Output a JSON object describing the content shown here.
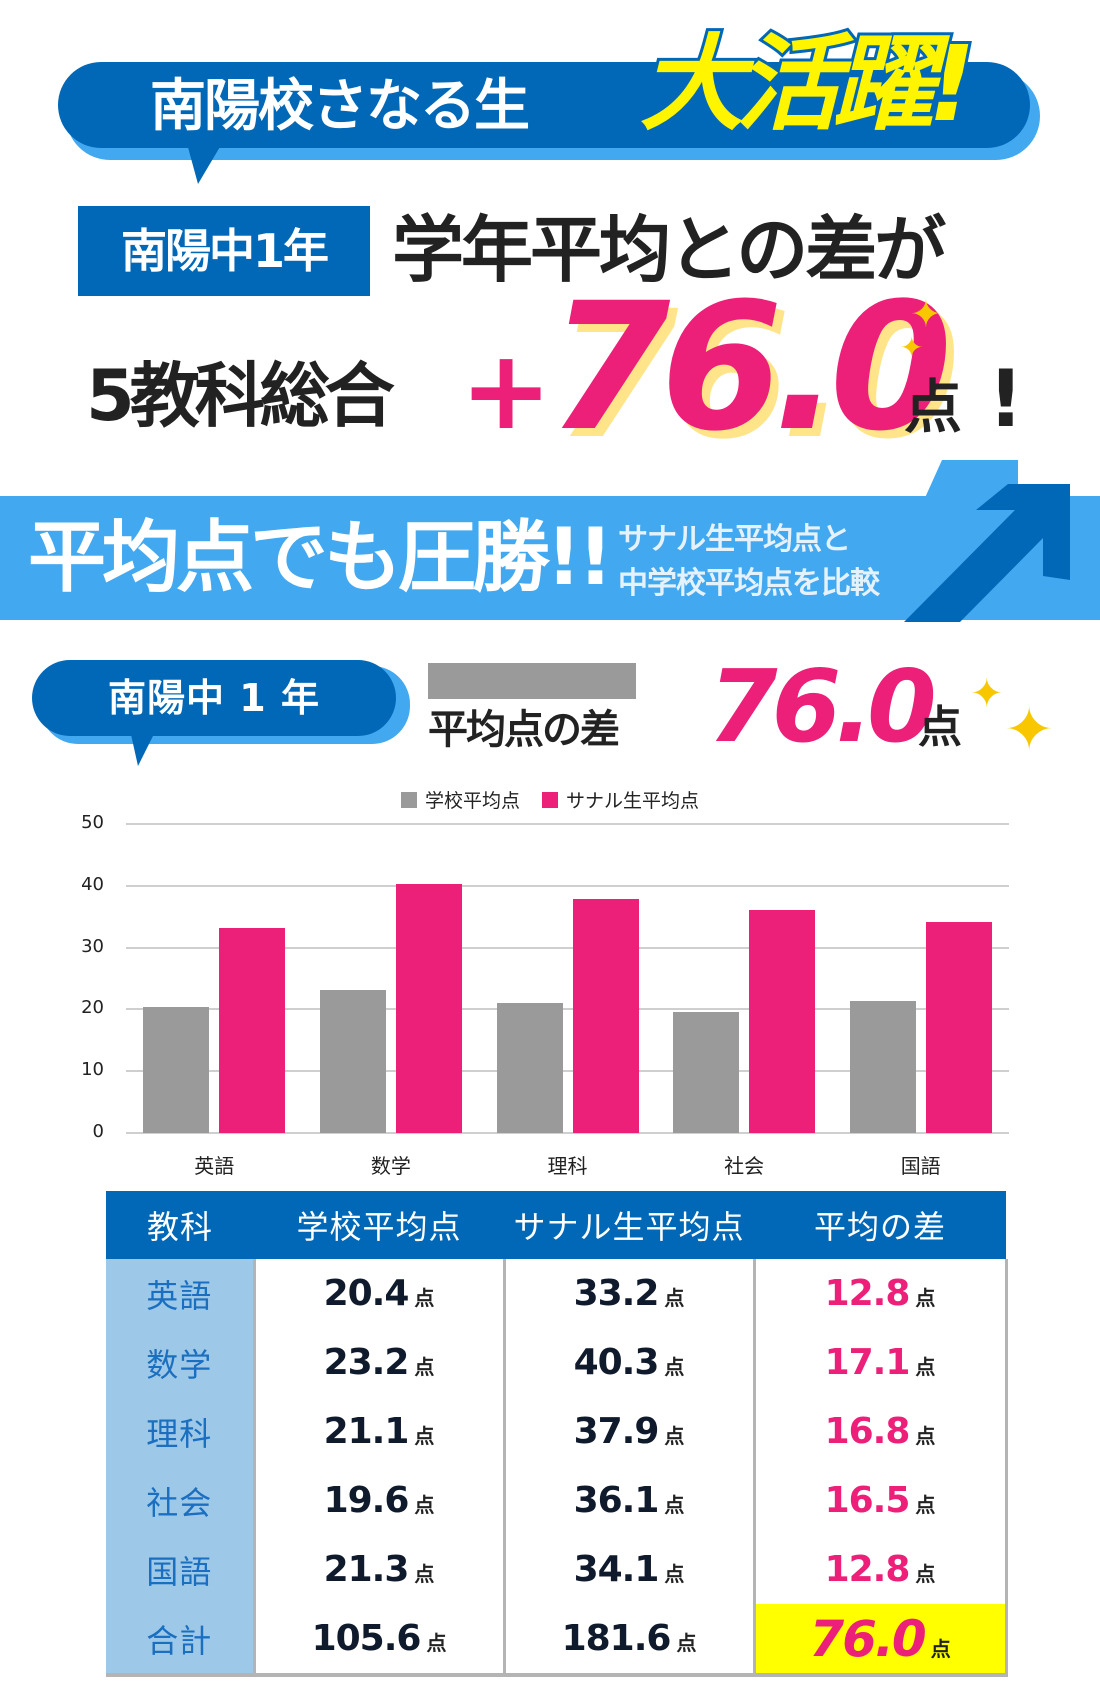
{
  "hero": {
    "bubble_text": "南陽校さなる生",
    "bubble_highlight": "大活躍!",
    "grade_badge": "南陽中1年",
    "headline_line1": "学年平均との差が",
    "headline_line2": "5教科総合",
    "plus_sign": "+",
    "score": "76.0",
    "score_unit": "点",
    "exclamation": "!",
    "sparkle_icon": "✦"
  },
  "banner": {
    "main": "平均点でも圧勝!!",
    "sub_line1": "サナル生平均点と",
    "sub_line2": "中学校平均点を比較"
  },
  "section": {
    "grade_label": "南陽中 1 年",
    "diff_label": "平均点の差",
    "diff_value": "76.0",
    "diff_unit": "点"
  },
  "colors": {
    "brand_blue": "#0068b7",
    "light_blue": "#42a8f0",
    "accent_pink": "#ec1f79",
    "school_gray": "#9a9a9a",
    "highlight_yellow": "#ffff00",
    "sparkle_gold": "#f8c700"
  },
  "chart_data": {
    "type": "bar",
    "title": "",
    "xlabel": "",
    "ylabel": "",
    "categories": [
      "英語",
      "数学",
      "理科",
      "社会",
      "国語"
    ],
    "series": [
      {
        "name": "学校平均点",
        "color": "#9a9a9a",
        "values": [
          20.4,
          23.2,
          21.1,
          19.6,
          21.3
        ]
      },
      {
        "name": "サナル生平均点",
        "color": "#ec1f79",
        "values": [
          33.2,
          40.3,
          37.9,
          36.1,
          34.1
        ]
      }
    ],
    "ylim": [
      0,
      50
    ],
    "yticks": [
      "0",
      "10",
      "20",
      "30",
      "40",
      "50"
    ],
    "grid": true,
    "legend_position": "top"
  },
  "table": {
    "headers": [
      "教科",
      "学校平均点",
      "サナル生平均点",
      "平均の差"
    ],
    "unit": "点",
    "rows": [
      {
        "subject": "英語",
        "school": "20.4",
        "sanaru": "33.2",
        "diff": "12.8"
      },
      {
        "subject": "数学",
        "school": "23.2",
        "sanaru": "40.3",
        "diff": "17.1"
      },
      {
        "subject": "理科",
        "school": "21.1",
        "sanaru": "37.9",
        "diff": "16.8"
      },
      {
        "subject": "社会",
        "school": "19.6",
        "sanaru": "36.1",
        "diff": "16.5"
      },
      {
        "subject": "国語",
        "school": "21.3",
        "sanaru": "34.1",
        "diff": "12.8"
      },
      {
        "subject": "合計",
        "school": "105.6",
        "sanaru": "181.6",
        "diff": "76.0"
      }
    ]
  }
}
